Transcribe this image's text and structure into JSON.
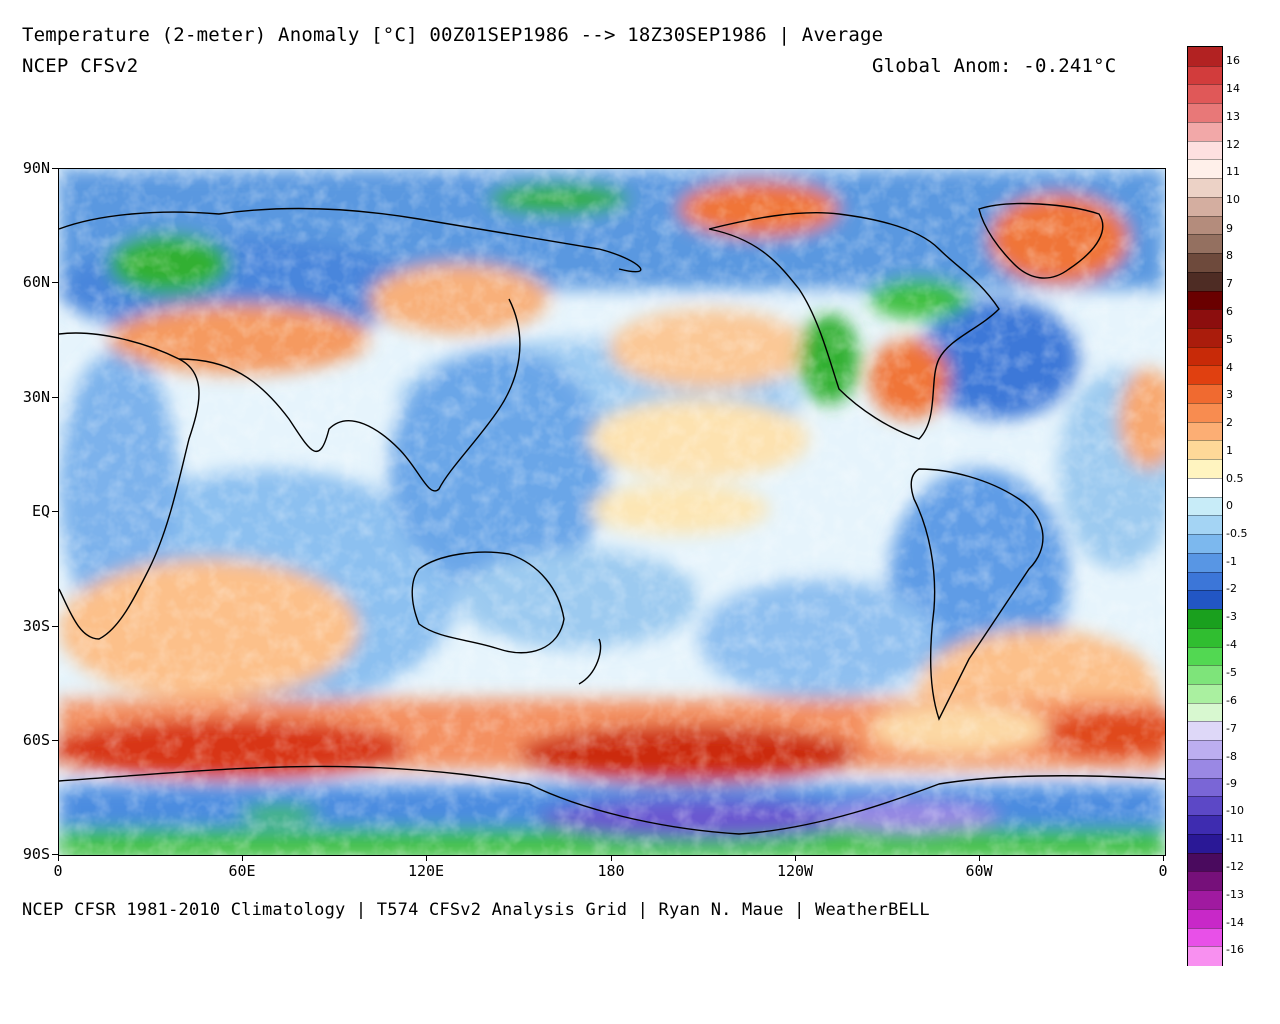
{
  "header": {
    "title": "Temperature (2-meter) Anomaly  [°C] 00Z01SEP1986 --> 18Z30SEP1986 | Average",
    "model": "NCEP CFSv2",
    "global_anom": "Global Anom: -0.241°C"
  },
  "footer": {
    "credit": "NCEP CFSR 1981-2010 Climatology | T574 CFSv2 Analysis Grid | Ryan N. Maue | WeatherBELL"
  },
  "axes": {
    "lat_labels": [
      "90N",
      "60N",
      "30N",
      "EQ",
      "30S",
      "60S",
      "90S"
    ],
    "lon_labels": [
      "0",
      "60E",
      "120E",
      "180",
      "120W",
      "60W",
      "0"
    ]
  },
  "legend": {
    "labels": [
      "16",
      "14",
      "13",
      "12",
      "11",
      "10",
      "9",
      "8",
      "7",
      "6",
      "5",
      "4",
      "3",
      "2",
      "1",
      "0.5",
      "0",
      "-0.5",
      "-1",
      "-2",
      "-3",
      "-4",
      "-5",
      "-6",
      "-7",
      "-8",
      "-9",
      "-10",
      "-11",
      "-12",
      "-13",
      "-14",
      "-16"
    ],
    "colors": [
      "#b22222",
      "#d23c3c",
      "#e05858",
      "#e87878",
      "#f2a8a8",
      "#fde0e0",
      "#fff0ea",
      "#ecd2c6",
      "#d4aea0",
      "#b48c7c",
      "#947060",
      "#6e4a3c",
      "#4e2c24",
      "#6a0000",
      "#8c0e0e",
      "#aa1c0c",
      "#c82a08",
      "#e04010",
      "#f06a30",
      "#f88c50",
      "#fcae74",
      "#fed898",
      "#fff4c0",
      "#ffffff",
      "#c8ecf8",
      "#a4d4f4",
      "#7cb8ee",
      "#5896e4",
      "#3c76d8",
      "#2256c4",
      "#1aa01e",
      "#30be30",
      "#52d852",
      "#7ee47a",
      "#aaf0a0",
      "#d8f8d0",
      "#ded8f8",
      "#bcaef0",
      "#9a88e4",
      "#7a66d6",
      "#5c48c6",
      "#3e2cb0",
      "#2a1896",
      "#4a0a5e",
      "#76107a",
      "#a01aa0",
      "#c828c8",
      "#e850e8",
      "#f890f0"
    ]
  }
}
